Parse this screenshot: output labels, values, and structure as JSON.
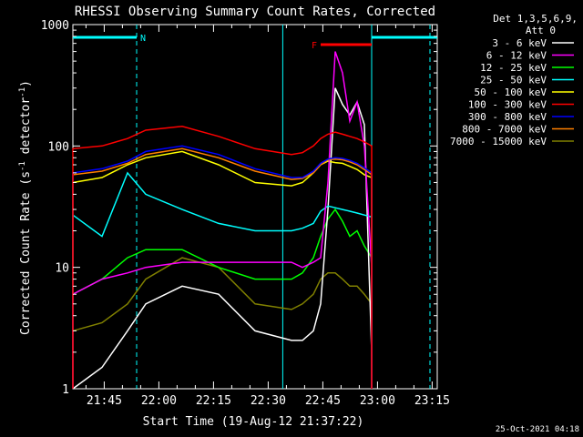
{
  "chart_data": {
    "type": "line",
    "title": "RHESSI Observing Summary Count Rates, Corrected",
    "xlabel": "Start Time (19-Aug-12 21:37:22)",
    "ylabel": "Corrected Count Rate (s⁻¹ detector⁻¹)",
    "ylabel_parts": {
      "main": "Corrected Count Rate (s",
      "sup1": "-1",
      "mid": " detector",
      "sup2": "-1",
      "end": ")"
    },
    "yscale": "log",
    "xlim_minutes": [
      0,
      100
    ],
    "ylim": [
      1,
      1000
    ],
    "x_ticks": [
      {
        "m": 8.6,
        "label": "21:45"
      },
      {
        "m": 23.6,
        "label": "22:00"
      },
      {
        "m": 38.6,
        "label": "22:15"
      },
      {
        "m": 53.6,
        "label": "22:30"
      },
      {
        "m": 68.6,
        "label": "22:45"
      },
      {
        "m": 83.6,
        "label": "23:00"
      },
      {
        "m": 98.6,
        "label": "23:15"
      }
    ],
    "y_ticks": [
      {
        "v": 1,
        "label": "1"
      },
      {
        "v": 10,
        "label": "10"
      },
      {
        "v": 100,
        "label": "100"
      },
      {
        "v": 1000,
        "label": "1000"
      }
    ],
    "legend_header": [
      "Det 1,3,5,6,9,",
      "Att 0"
    ],
    "legend_position": "top-right",
    "timestamp": "25-Oct-2021 04:18",
    "annotations": {
      "night_label": "N",
      "flare_label": "F",
      "night_color": "#00ffff",
      "flare_color": "#ff0000",
      "night_bars": [
        [
          0,
          17.5
        ],
        [
          82,
          100
        ]
      ],
      "night_lines": [
        17.5,
        57.6,
        82,
        98
      ],
      "flare_bar": [
        68,
        82
      ]
    },
    "x_minutes": [
      0,
      8,
      15,
      20,
      30,
      40,
      50,
      60,
      63,
      66,
      68,
      70,
      72,
      74,
      76,
      78,
      80,
      82
    ],
    "series": [
      {
        "name": "3 - 6 keV",
        "color": "#ffffff",
        "values": [
          1,
          1.5,
          3,
          5,
          7,
          6,
          3,
          2.5,
          2.5,
          3,
          5,
          30,
          300,
          220,
          180,
          230,
          150,
          2
        ]
      },
      {
        "name": "6 - 12 keV",
        "color": "#ff00ff",
        "values": [
          6,
          8,
          9,
          10,
          11,
          11,
          11,
          11,
          10,
          11,
          12,
          50,
          600,
          400,
          160,
          230,
          100,
          10
        ]
      },
      {
        "name": "12 - 25 keV",
        "color": "#00ff00",
        "values": [
          6,
          8,
          12,
          14,
          14,
          10,
          8,
          8,
          9,
          12,
          18,
          25,
          30,
          24,
          18,
          20,
          15,
          12
        ]
      },
      {
        "name": "25 - 50 keV",
        "color": "#00ffff",
        "values": [
          27,
          18,
          60,
          40,
          30,
          23,
          20,
          20,
          21,
          23,
          29,
          32,
          31,
          30,
          29,
          28,
          27,
          26
        ]
      },
      {
        "name": "50 - 100 keV",
        "color": "#ffff00",
        "values": [
          50,
          55,
          70,
          80,
          90,
          70,
          50,
          47,
          50,
          60,
          70,
          75,
          73,
          72,
          68,
          64,
          58,
          55
        ]
      },
      {
        "name": "100 - 300 keV",
        "color": "#ff0000",
        "values": [
          95,
          100,
          115,
          135,
          145,
          120,
          95,
          85,
          88,
          100,
          115,
          125,
          130,
          125,
          120,
          115,
          108,
          100
        ]
      },
      {
        "name": "300 - 800 keV",
        "color": "#0000ff",
        "values": [
          60,
          65,
          75,
          90,
          100,
          85,
          65,
          55,
          55,
          62,
          72,
          78,
          80,
          79,
          76,
          72,
          66,
          60
        ]
      },
      {
        "name": "800 - 7000 keV",
        "color": "#ff8000",
        "values": [
          58,
          62,
          72,
          85,
          95,
          80,
          62,
          53,
          54,
          60,
          70,
          77,
          78,
          77,
          74,
          70,
          64,
          58
        ]
      },
      {
        "name": "7000 - 15000 keV",
        "color": "#808000",
        "values": [
          3,
          3.5,
          5,
          8,
          12,
          10,
          5,
          4.5,
          5,
          6,
          8,
          9,
          9,
          8,
          7,
          7,
          6,
          5
        ]
      }
    ]
  }
}
